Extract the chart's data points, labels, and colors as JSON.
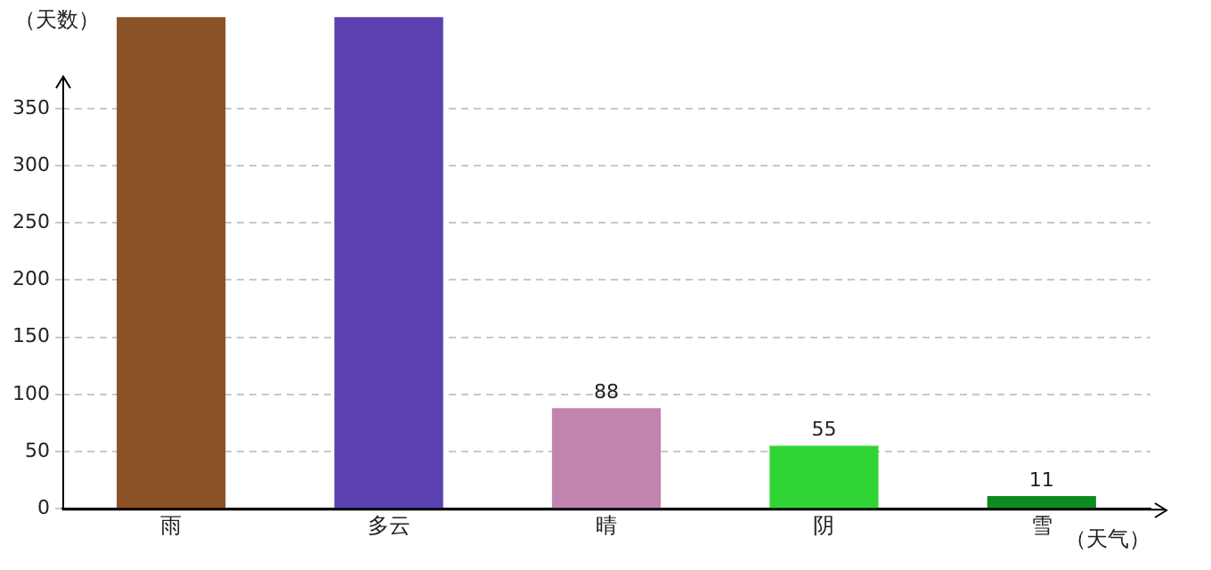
{
  "chart_data": {
    "type": "bar",
    "xlabel": "（天气）",
    "ylabel": "（天数）",
    "categories": [
      "雨",
      "多云",
      "晴",
      "阴",
      "雪"
    ],
    "values": [
      430,
      430,
      88,
      55,
      11
    ],
    "colors": [
      "#8b5225",
      "#5b40b0",
      "#c084ae",
      "#30d535",
      "#0d8b1e"
    ],
    "value_labels": [
      null,
      null,
      "88",
      "55",
      "11"
    ],
    "ylim": [
      0,
      430
    ],
    "yticks": [
      0,
      50,
      100,
      150,
      200,
      250,
      300,
      350
    ],
    "grid": "y",
    "legend": false
  }
}
